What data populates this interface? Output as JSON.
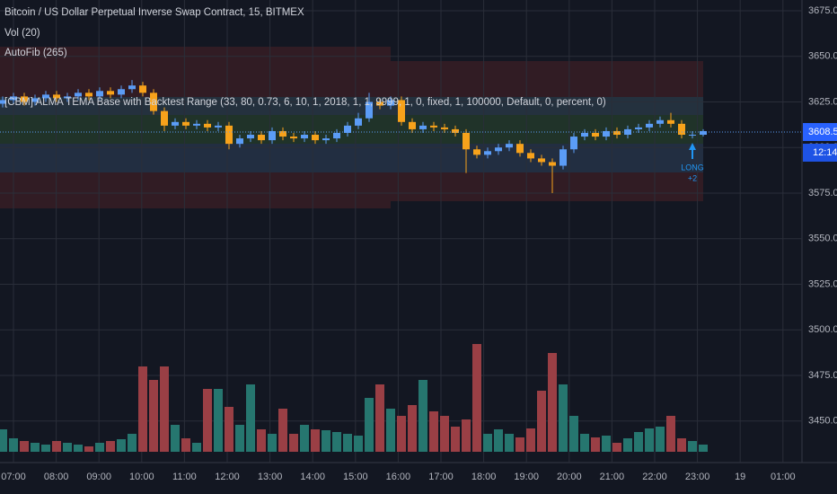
{
  "chart_data": {
    "type": "candlestick",
    "title": "Bitcoin / US Dollar Perpetual Inverse Swap Contract, 15, BITMEX",
    "indicators": [
      "Vol (20)",
      "AutoFib (265)",
      "[CBM] ALMA TEMA Base with Backtest Range (33, 80, 0.73, 6, 10, 1, 2018, 1, 1, 9999, 1, 0, fixed, 1, 100000, Default, 0, percent, 0)"
    ],
    "open": [
      3624,
      3626,
      3628,
      3625,
      3627,
      3629,
      3627,
      3628,
      3630,
      3628,
      3631,
      3629,
      3632,
      3634,
      3630,
      3620,
      3612,
      3614,
      3612,
      3613,
      3611,
      3612,
      3602,
      3605,
      3607,
      3604,
      3609,
      3606,
      3605,
      3607,
      3604,
      3605,
      3608,
      3612,
      3616,
      3625,
      3623,
      3626,
      3614,
      3610,
      3612,
      3611,
      3610,
      3608,
      3599,
      3596,
      3598,
      3600,
      3602,
      3597,
      3594,
      3592,
      3590,
      3599,
      3606,
      3608,
      3606,
      3609,
      3607,
      3610,
      3611,
      3613,
      3615,
      3613,
      3607,
      3607
    ],
    "high": [
      3628,
      3630,
      3630,
      3629,
      3631,
      3631,
      3630,
      3632,
      3632,
      3633,
      3633,
      3634,
      3637,
      3636,
      3632,
      3622,
      3616,
      3616,
      3615,
      3615,
      3614,
      3614,
      3607,
      3609,
      3609,
      3611,
      3611,
      3608,
      3609,
      3609,
      3607,
      3610,
      3614,
      3619,
      3630,
      3627,
      3628,
      3628,
      3616,
      3614,
      3614,
      3613,
      3612,
      3610,
      3601,
      3600,
      3602,
      3604,
      3604,
      3599,
      3596,
      3594,
      3601,
      3608,
      3610,
      3610,
      3611,
      3611,
      3612,
      3613,
      3615,
      3617,
      3619,
      3615,
      3609,
      3610
    ],
    "low": [
      3622,
      3624,
      3623,
      3623,
      3625,
      3625,
      3625,
      3626,
      3626,
      3626,
      3627,
      3627,
      3630,
      3628,
      3618,
      3609,
      3610,
      3610,
      3610,
      3609,
      3609,
      3599,
      3600,
      3603,
      3602,
      3602,
      3604,
      3603,
      3603,
      3602,
      3602,
      3603,
      3606,
      3610,
      3614,
      3621,
      3621,
      3612,
      3608,
      3608,
      3609,
      3608,
      3606,
      3586,
      3594,
      3594,
      3596,
      3598,
      3595,
      3592,
      3590,
      3575,
      3588,
      3597,
      3604,
      3604,
      3604,
      3605,
      3605,
      3608,
      3609,
      3611,
      3611,
      3605,
      3605,
      3606
    ],
    "close": [
      3626,
      3628,
      3625,
      3627,
      3629,
      3627,
      3628,
      3630,
      3628,
      3631,
      3629,
      3632,
      3634,
      3630,
      3620,
      3612,
      3614,
      3612,
      3613,
      3611,
      3612,
      3602,
      3605,
      3607,
      3604,
      3609,
      3606,
      3605,
      3607,
      3604,
      3605,
      3608,
      3612,
      3616,
      3625,
      3623,
      3626,
      3614,
      3610,
      3612,
      3611,
      3610,
      3608,
      3599,
      3596,
      3598,
      3600,
      3602,
      3597,
      3594,
      3592,
      3590,
      3599,
      3606,
      3608,
      3606,
      3609,
      3607,
      3610,
      3611,
      3613,
      3615,
      3613,
      3607,
      3607,
      3609
    ],
    "volume": [
      25,
      15,
      12,
      10,
      8,
      12,
      10,
      8,
      6,
      10,
      12,
      14,
      20,
      95,
      80,
      95,
      30,
      15,
      10,
      70,
      70,
      50,
      30,
      75,
      25,
      20,
      48,
      20,
      30,
      25,
      24,
      22,
      20,
      18,
      60,
      75,
      48,
      40,
      52,
      80,
      45,
      40,
      28,
      36,
      120,
      20,
      25,
      20,
      16,
      26,
      68,
      110,
      75,
      40,
      20,
      16,
      18,
      10,
      15,
      22,
      26,
      28,
      40,
      15,
      12,
      8
    ],
    "up_color": "#5b9cf6",
    "down_color": "#f7a21b",
    "volume_up_color": "#26766f",
    "volume_down_color": "#9a3f45",
    "ylim": [
      3427.2,
      3680.9
    ],
    "yticks": [
      {
        "value": 3450,
        "label": "3450.0"
      },
      {
        "value": 3475,
        "label": "3475.0"
      },
      {
        "value": 3500,
        "label": "3500.0"
      },
      {
        "value": 3525,
        "label": "3525.0"
      },
      {
        "value": 3550,
        "label": "3550.0"
      },
      {
        "value": 3575,
        "label": "3575.0"
      },
      {
        "value": 3600,
        "label": "3600.0"
      },
      {
        "value": 3625,
        "label": "3625.0"
      },
      {
        "value": 3650,
        "label": "3650.0"
      },
      {
        "value": 3675,
        "label": "3675.0"
      }
    ],
    "xtick_labels": [
      "07:00",
      "08:00",
      "09:00",
      "10:00",
      "11:00",
      "12:00",
      "13:00",
      "14:00",
      "15:00",
      "16:00",
      "17:00",
      "18:00",
      "19:00",
      "20:00",
      "21:00",
      "22:00",
      "23:00",
      "19",
      "01:00"
    ],
    "last_price": 3608.5,
    "countdown": "12:14",
    "annotation": {
      "text": "LONG",
      "qty": "+2"
    },
    "grid": true
  }
}
